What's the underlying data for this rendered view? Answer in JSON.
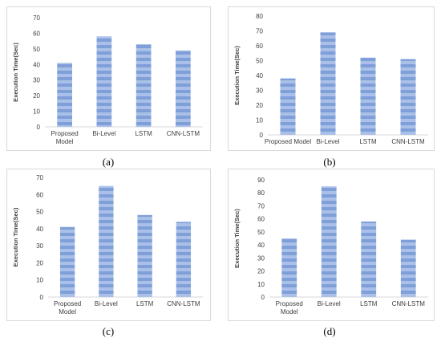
{
  "colors": {
    "bar": "#7f9fd8",
    "stripe": "#aac0e8",
    "axis": "#d9d9d9",
    "text": "#404040"
  },
  "chart_data": [
    {
      "type": "bar",
      "panel_label": "(a)",
      "ylabel": "Execution Time(Sec)",
      "categories": [
        [
          "Proposed",
          "Model"
        ],
        [
          "Bi-Level"
        ],
        [
          "LSTM"
        ],
        [
          "CNN-LSTM"
        ]
      ],
      "values": [
        41,
        58,
        53,
        49
      ],
      "ylim": [
        0,
        70
      ],
      "ystep": 10
    },
    {
      "type": "bar",
      "panel_label": "(b)",
      "ylabel": "Execution Time(Sec)",
      "categories": [
        [
          "Proposed Model"
        ],
        [
          "Bi-Level"
        ],
        [
          "LSTM"
        ],
        [
          "CNN-LSTM"
        ]
      ],
      "values": [
        38,
        69,
        52,
        51
      ],
      "ylim": [
        0,
        80
      ],
      "ystep": 10
    },
    {
      "type": "bar",
      "panel_label": "(c)",
      "ylabel": "Execution Time(Sec)",
      "categories": [
        [
          "Proposed",
          "Model"
        ],
        [
          "Bi-Level"
        ],
        [
          "LSTM"
        ],
        [
          "CNN-LSTM"
        ]
      ],
      "values": [
        41,
        65,
        48,
        44
      ],
      "ylim": [
        0,
        70
      ],
      "ystep": 10
    },
    {
      "type": "bar",
      "panel_label": "(d)",
      "ylabel": "Execution Time(Sec)",
      "categories": [
        [
          "Proposed",
          "Model"
        ],
        [
          "Bi-Level"
        ],
        [
          "LSTM"
        ],
        [
          "CNN-LSTM"
        ]
      ],
      "values": [
        45,
        85,
        58,
        44
      ],
      "ylim": [
        0,
        90
      ],
      "ystep": 10
    }
  ]
}
